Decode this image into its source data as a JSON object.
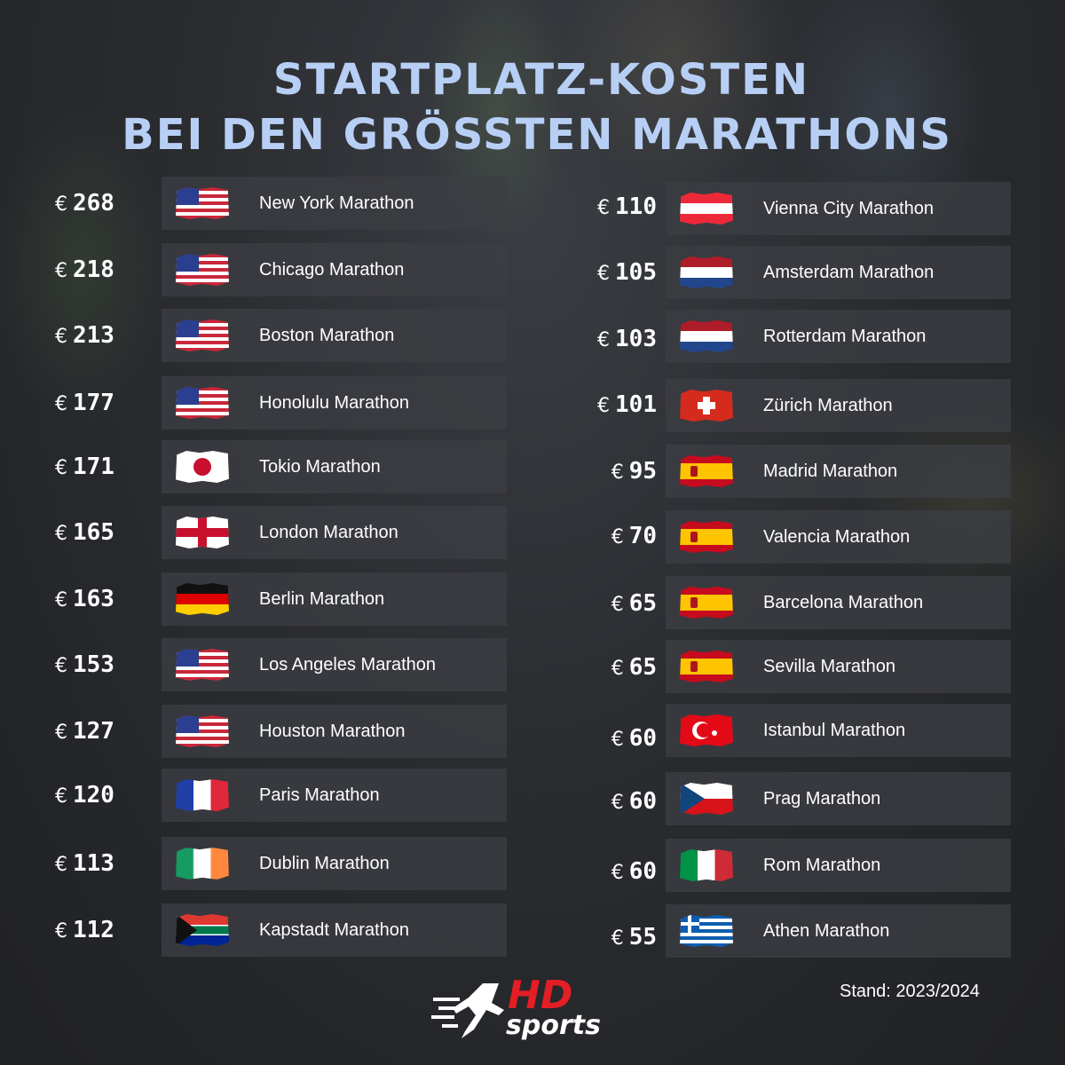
{
  "title": {
    "line1": "STARTPLATZ-KOSTEN",
    "line2": "BEI DEN GRÖSSTEN MARATHONS"
  },
  "currency": "€",
  "left_column": [
    {
      "price": "268",
      "name": "New York Marathon",
      "flag": "usa"
    },
    {
      "price": "218",
      "name": "Chicago Marathon",
      "flag": "usa"
    },
    {
      "price": "213",
      "name": "Boston Marathon",
      "flag": "usa"
    },
    {
      "price": "177",
      "name": "Honolulu Marathon",
      "flag": "usa"
    },
    {
      "price": "171",
      "name": "Tokio Marathon",
      "flag": "jpn"
    },
    {
      "price": "165",
      "name": "London Marathon",
      "flag": "eng"
    },
    {
      "price": "163",
      "name": "Berlin Marathon",
      "flag": "ger"
    },
    {
      "price": "153",
      "name": "Los Angeles Marathon",
      "flag": "usa"
    },
    {
      "price": "127",
      "name": "Houston Marathon",
      "flag": "usa"
    },
    {
      "price": "120",
      "name": "Paris Marathon",
      "flag": "fra"
    },
    {
      "price": "113",
      "name": "Dublin Marathon",
      "flag": "irl"
    },
    {
      "price": "112",
      "name": "Kapstadt Marathon",
      "flag": "rsa"
    }
  ],
  "right_column": [
    {
      "price": "110",
      "name": "Vienna City Marathon",
      "flag": "aut"
    },
    {
      "price": "105",
      "name": "Amsterdam Marathon",
      "flag": "ned"
    },
    {
      "price": "103",
      "name": "Rotterdam Marathon",
      "flag": "ned"
    },
    {
      "price": "101",
      "name": "Zürich Marathon",
      "flag": "sui"
    },
    {
      "price": "95",
      "name": "Madrid Marathon",
      "flag": "esp"
    },
    {
      "price": "70",
      "name": "Valencia Marathon",
      "flag": "esp"
    },
    {
      "price": "65",
      "name": "Barcelona Marathon",
      "flag": "esp"
    },
    {
      "price": "65",
      "name": "Sevilla Marathon",
      "flag": "esp"
    },
    {
      "price": "60",
      "name": "Istanbul Marathon",
      "flag": "tur"
    },
    {
      "price": "60",
      "name": "Prag Marathon",
      "flag": "cze"
    },
    {
      "price": "60",
      "name": "Rom Marathon",
      "flag": "ita"
    },
    {
      "price": "55",
      "name": "Athen Marathon",
      "flag": "gre"
    }
  ],
  "footer": {
    "stand": "Stand: 2023/2024",
    "logo_hd": "HD",
    "logo_sports": "sports"
  }
}
